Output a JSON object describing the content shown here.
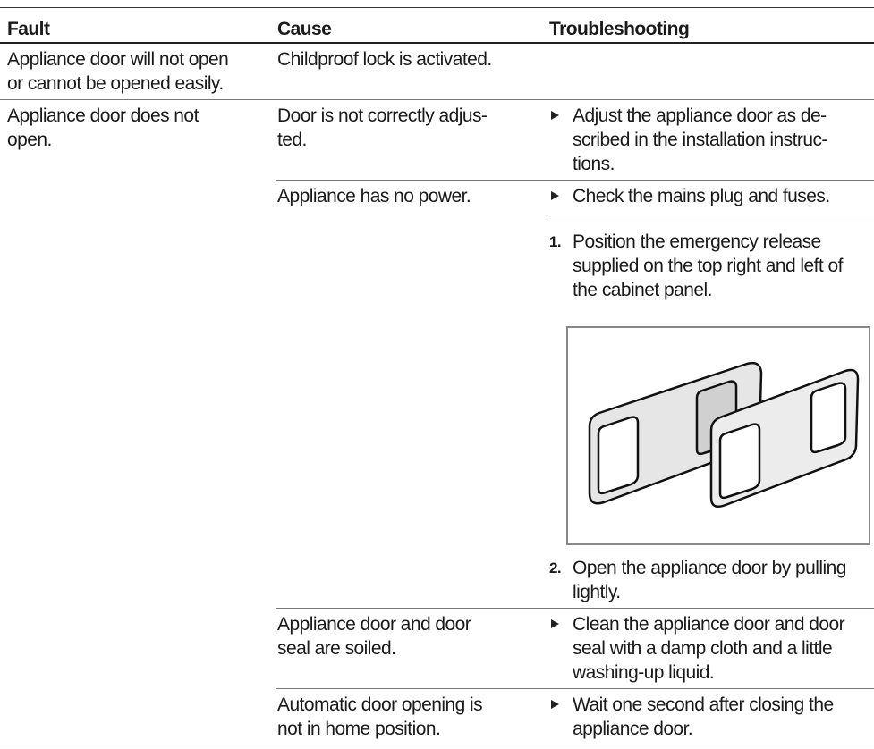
{
  "table": {
    "header": [
      "Fault",
      "Cause",
      "Troubleshooting"
    ],
    "rows": [
      {
        "fault": [
          "Appliance door will not open",
          "or cannot be opened easily."
        ],
        "causes": [
          {
            "cause": [
              "Childproof lock is activated."
            ],
            "remedies": []
          }
        ]
      },
      {
        "fault": [
          "Appliance door does not",
          "open."
        ],
        "causes": [
          {
            "cause": [
              "Door is not correctly adjus-",
              "ted."
            ],
            "remedies": [
              {
                "text": [
                  "Adjust the appliance door as de-",
                  "scribed in the installation instruc-",
                  "tions."
                ]
              }
            ]
          },
          {
            "cause": [
              "Appliance has no power."
            ],
            "remedies": [
              {
                "text": [
                  "Check the mains plug and fuses."
                ]
              },
              {
                "marker": "1.",
                "text": [
                  "Position the emergency release",
                  "supplied on the top right and left of",
                  "the cabinet panel."
                ]
              },
              {
                "marker": "2.",
                "text": [
                  "Open the appliance door by pulling",
                  "lightly."
                ]
              }
            ]
          },
          {
            "cause": [
              "Appliance door and door",
              "seal are soiled."
            ],
            "remedies": [
              {
                "text": [
                  "Clean the appliance door and door",
                  "seal with a damp cloth and a little",
                  "washing-up liquid."
                ]
              }
            ]
          },
          {
            "cause": [
              "Automatic door opening is",
              "not in home position."
            ],
            "remedies": [
              {
                "text": [
                  "Wait one second after closing the",
                  "appliance door."
                ]
              }
            ]
          }
        ]
      }
    ]
  }
}
